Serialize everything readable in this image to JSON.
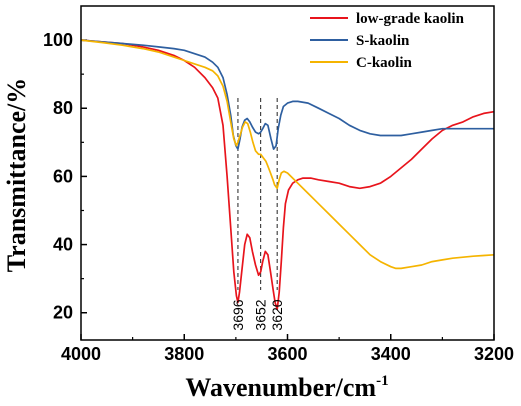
{
  "chart_data": {
    "type": "line",
    "xlabel": "Wavenumber/cm",
    "xlabel_sup": "-1",
    "ylabel": "Transmittance/%",
    "xlim": [
      4000,
      3200
    ],
    "ylim": [
      12,
      110
    ],
    "x_ticks": [
      "4000",
      "3800",
      "3600",
      "3400",
      "3200"
    ],
    "y_ticks": [
      "20",
      "40",
      "60",
      "80",
      "100"
    ],
    "legend_position": "top-right",
    "series": [
      {
        "name": "low-grade kaolin",
        "color": "#e8141c",
        "points": [
          [
            4000,
            100
          ],
          [
            3960,
            99.5
          ],
          [
            3920,
            99
          ],
          [
            3880,
            98
          ],
          [
            3850,
            97
          ],
          [
            3820,
            95.5
          ],
          [
            3800,
            94
          ],
          [
            3780,
            92
          ],
          [
            3760,
            89
          ],
          [
            3745,
            86
          ],
          [
            3735,
            83
          ],
          [
            3725,
            75
          ],
          [
            3717,
            60
          ],
          [
            3710,
            45
          ],
          [
            3704,
            32
          ],
          [
            3699,
            25
          ],
          [
            3696,
            23
          ],
          [
            3693,
            26
          ],
          [
            3688,
            33
          ],
          [
            3683,
            40
          ],
          [
            3678,
            43
          ],
          [
            3673,
            42
          ],
          [
            3668,
            38
          ],
          [
            3662,
            34
          ],
          [
            3656,
            31
          ],
          [
            3652,
            32
          ],
          [
            3648,
            35
          ],
          [
            3643,
            38
          ],
          [
            3638,
            37
          ],
          [
            3633,
            32
          ],
          [
            3628,
            27
          ],
          [
            3624,
            23
          ],
          [
            3620,
            21
          ],
          [
            3616,
            26
          ],
          [
            3612,
            35
          ],
          [
            3608,
            45
          ],
          [
            3604,
            52
          ],
          [
            3598,
            56
          ],
          [
            3590,
            58
          ],
          [
            3580,
            59
          ],
          [
            3570,
            59.5
          ],
          [
            3555,
            59.5
          ],
          [
            3540,
            59
          ],
          [
            3520,
            58.5
          ],
          [
            3500,
            58
          ],
          [
            3480,
            57
          ],
          [
            3460,
            56.5
          ],
          [
            3440,
            57
          ],
          [
            3420,
            58
          ],
          [
            3400,
            60
          ],
          [
            3380,
            62.5
          ],
          [
            3360,
            65
          ],
          [
            3340,
            68
          ],
          [
            3320,
            71
          ],
          [
            3300,
            73.5
          ],
          [
            3280,
            75
          ],
          [
            3260,
            76
          ],
          [
            3240,
            77.5
          ],
          [
            3220,
            78.5
          ],
          [
            3200,
            79
          ]
        ]
      },
      {
        "name": "S-kaolin",
        "color": "#2e5fa0",
        "points": [
          [
            4000,
            100
          ],
          [
            3960,
            99.5
          ],
          [
            3920,
            99
          ],
          [
            3880,
            98.5
          ],
          [
            3850,
            98
          ],
          [
            3820,
            97.5
          ],
          [
            3800,
            97
          ],
          [
            3780,
            96
          ],
          [
            3760,
            95
          ],
          [
            3745,
            93.5
          ],
          [
            3735,
            92
          ],
          [
            3725,
            89
          ],
          [
            3717,
            84
          ],
          [
            3710,
            78
          ],
          [
            3705,
            72
          ],
          [
            3700,
            69
          ],
          [
            3696,
            68
          ],
          [
            3692,
            71
          ],
          [
            3688,
            74.5
          ],
          [
            3683,
            76.5
          ],
          [
            3678,
            77
          ],
          [
            3673,
            76
          ],
          [
            3668,
            74.5
          ],
          [
            3662,
            73
          ],
          [
            3656,
            72.5
          ],
          [
            3652,
            73
          ],
          [
            3648,
            74
          ],
          [
            3643,
            75.5
          ],
          [
            3638,
            75
          ],
          [
            3632,
            71
          ],
          [
            3627,
            68
          ],
          [
            3622,
            69
          ],
          [
            3618,
            74
          ],
          [
            3613,
            78
          ],
          [
            3608,
            80.5
          ],
          [
            3600,
            81.5
          ],
          [
            3590,
            82
          ],
          [
            3580,
            82
          ],
          [
            3560,
            81.5
          ],
          [
            3540,
            80
          ],
          [
            3520,
            78.5
          ],
          [
            3500,
            77
          ],
          [
            3480,
            75
          ],
          [
            3460,
            73.5
          ],
          [
            3440,
            72.5
          ],
          [
            3420,
            72
          ],
          [
            3400,
            72
          ],
          [
            3380,
            72
          ],
          [
            3360,
            72.5
          ],
          [
            3340,
            73
          ],
          [
            3320,
            73.5
          ],
          [
            3300,
            74
          ],
          [
            3280,
            74
          ],
          [
            3260,
            74
          ],
          [
            3240,
            74
          ],
          [
            3220,
            74
          ],
          [
            3200,
            74
          ]
        ]
      },
      {
        "name": "C-kaolin",
        "color": "#f5b400",
        "points": [
          [
            4000,
            100
          ],
          [
            3960,
            99.3
          ],
          [
            3920,
            98.5
          ],
          [
            3880,
            97.5
          ],
          [
            3850,
            96.5
          ],
          [
            3820,
            95
          ],
          [
            3800,
            94
          ],
          [
            3780,
            93
          ],
          [
            3760,
            92
          ],
          [
            3745,
            91
          ],
          [
            3735,
            89.5
          ],
          [
            3725,
            86.5
          ],
          [
            3717,
            82
          ],
          [
            3710,
            76
          ],
          [
            3704,
            71
          ],
          [
            3699,
            69
          ],
          [
            3696,
            70
          ],
          [
            3692,
            72
          ],
          [
            3687,
            74.5
          ],
          [
            3682,
            76
          ],
          [
            3677,
            75.5
          ],
          [
            3672,
            73
          ],
          [
            3667,
            70
          ],
          [
            3662,
            67.5
          ],
          [
            3656,
            66.5
          ],
          [
            3652,
            66.5
          ],
          [
            3647,
            65.5
          ],
          [
            3642,
            64.5
          ],
          [
            3638,
            63
          ],
          [
            3633,
            61
          ],
          [
            3628,
            59
          ],
          [
            3625,
            57.5
          ],
          [
            3620,
            56.5
          ],
          [
            3616,
            59
          ],
          [
            3612,
            61
          ],
          [
            3607,
            61.5
          ],
          [
            3600,
            61
          ],
          [
            3590,
            59.5
          ],
          [
            3580,
            58
          ],
          [
            3560,
            55
          ],
          [
            3540,
            52
          ],
          [
            3520,
            49
          ],
          [
            3500,
            46
          ],
          [
            3480,
            43
          ],
          [
            3460,
            40
          ],
          [
            3440,
            37
          ],
          [
            3420,
            35
          ],
          [
            3400,
            33.5
          ],
          [
            3390,
            33
          ],
          [
            3380,
            33
          ],
          [
            3360,
            33.5
          ],
          [
            3340,
            34
          ],
          [
            3320,
            35
          ],
          [
            3300,
            35.5
          ],
          [
            3280,
            36
          ],
          [
            3260,
            36.3
          ],
          [
            3240,
            36.6
          ],
          [
            3220,
            36.8
          ],
          [
            3200,
            37
          ]
        ]
      }
    ],
    "annotations": [
      {
        "x": 3696,
        "label": "3696"
      },
      {
        "x": 3652,
        "label": "3652"
      },
      {
        "x": 3620,
        "label": "3620"
      }
    ]
  }
}
